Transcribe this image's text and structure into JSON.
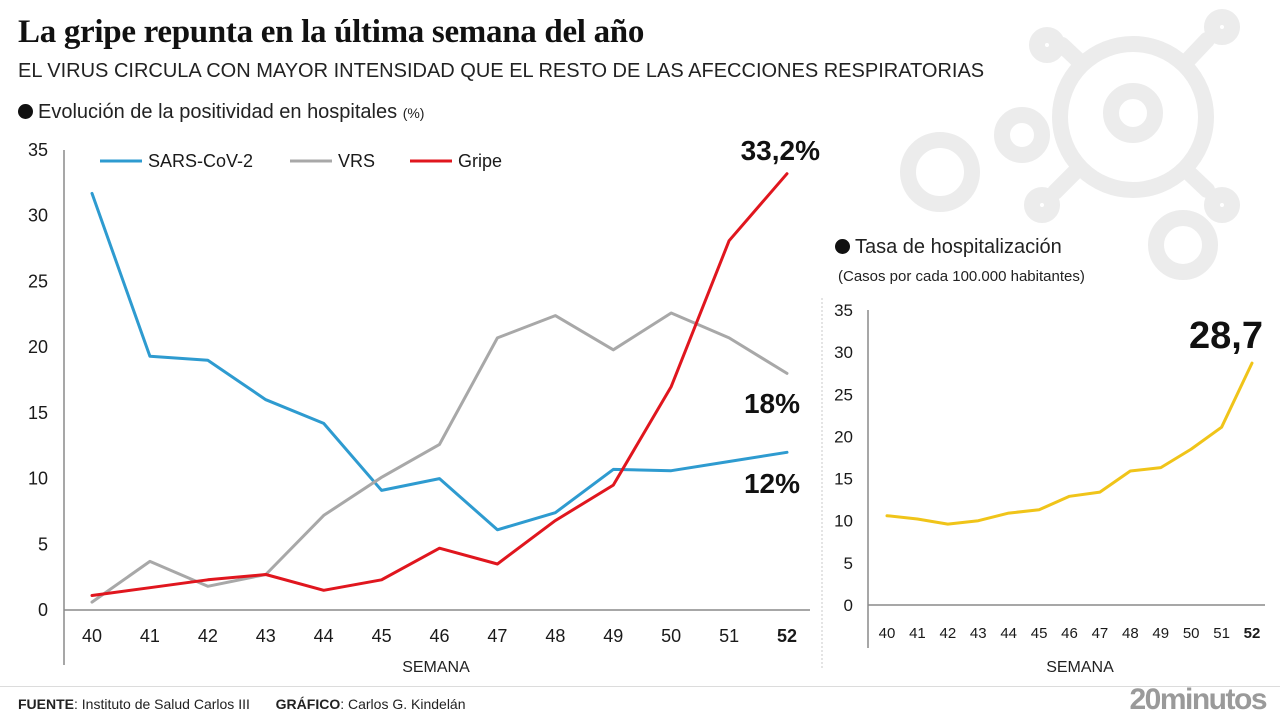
{
  "header": {
    "title": "La gripe repunta en la última semana del año",
    "subtitle": "EL VIRUS CIRCULA CON MAYOR INTENSIDAD QUE EL RESTO DE LAS AFECCIONES RESPIRATORIAS"
  },
  "decoration": {
    "icon": "virus-icon"
  },
  "chart_data": [
    {
      "type": "line",
      "title": "Evolución de la positividad en hospitales",
      "title_unit": "(%)",
      "xlabel": "SEMANA",
      "ylabel": "",
      "x": [
        "40",
        "41",
        "42",
        "43",
        "44",
        "45",
        "46",
        "47",
        "48",
        "49",
        "50",
        "51",
        "52"
      ],
      "ylim": [
        0,
        35
      ],
      "yticks": [
        "0",
        "5",
        "10",
        "15",
        "20",
        "25",
        "30",
        "35"
      ],
      "grid": false,
      "legend_position": "top",
      "series": [
        {
          "name": "SARS-CoV-2",
          "color": "#2e9bd0",
          "values": [
            31.7,
            19.3,
            19.0,
            16.0,
            14.2,
            9.1,
            10.0,
            6.1,
            7.4,
            10.7,
            10.6,
            11.3,
            12.0
          ],
          "end_label": "12%"
        },
        {
          "name": "VRS",
          "color": "#a8a8a8",
          "values": [
            0.6,
            3.7,
            1.8,
            2.7,
            7.2,
            10.1,
            12.6,
            20.7,
            22.4,
            19.8,
            22.6,
            20.7,
            18.0
          ],
          "end_label": "18%"
        },
        {
          "name": "Gripe",
          "color": "#e0161e",
          "values": [
            1.1,
            1.7,
            2.3,
            2.7,
            1.5,
            2.3,
            4.7,
            3.5,
            6.8,
            9.5,
            17.0,
            28.1,
            33.2
          ],
          "end_label": "33,2%"
        }
      ]
    },
    {
      "type": "line",
      "title": "Tasa de hospitalización",
      "note": "(Casos por cada 100.000 habitantes)",
      "xlabel": "SEMANA",
      "x": [
        "40",
        "41",
        "42",
        "43",
        "44",
        "45",
        "46",
        "47",
        "48",
        "49",
        "50",
        "51",
        "52"
      ],
      "ylim": [
        0,
        35
      ],
      "yticks": [
        "0",
        "5",
        "10",
        "15",
        "20",
        "25",
        "30",
        "35"
      ],
      "grid": false,
      "series": [
        {
          "name": "Tasa de hospitalización",
          "color": "#f0c419",
          "values": [
            10.6,
            10.2,
            9.6,
            10.0,
            10.9,
            11.3,
            12.9,
            13.4,
            15.9,
            16.3,
            18.5,
            21.1,
            28.7
          ],
          "end_label": "28,7"
        }
      ]
    }
  ],
  "footer": {
    "source_label": "FUENTE",
    "source_value": ": Instituto de Salud Carlos III",
    "graphic_label": "GRÁFICO",
    "graphic_value": ": Carlos G. Kindelán",
    "brand": "20minutos"
  }
}
